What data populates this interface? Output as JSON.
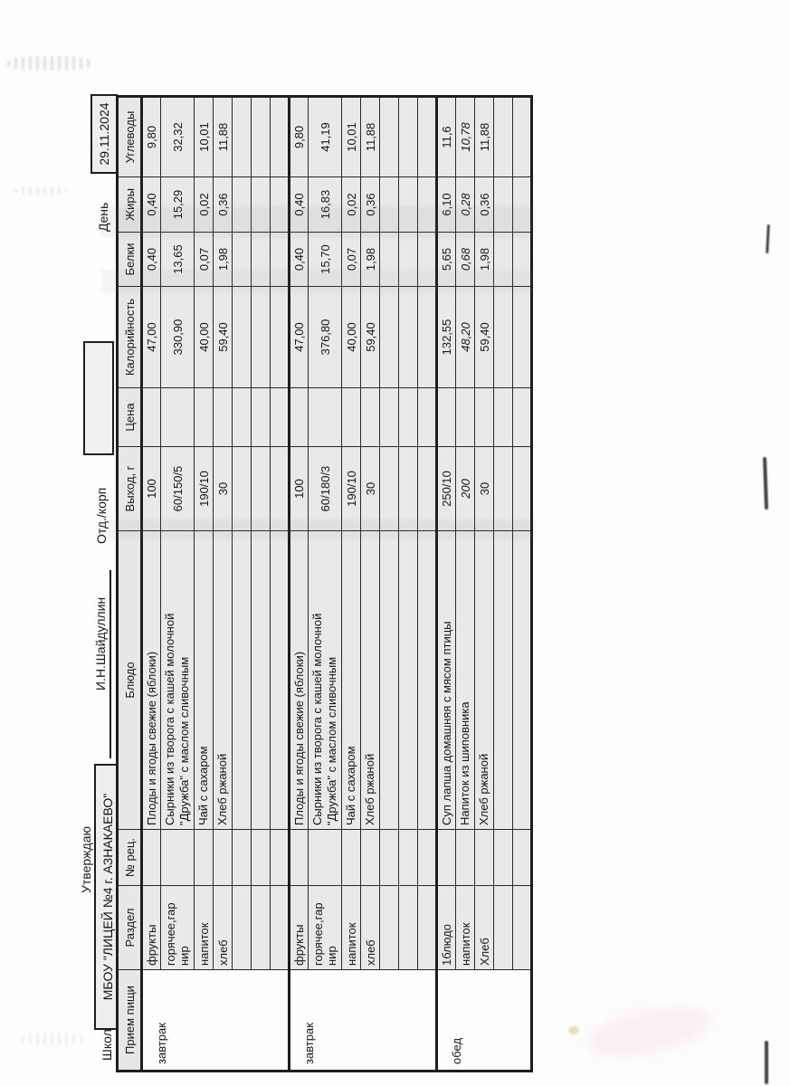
{
  "document": {
    "school_label": "Школа",
    "school_name": "МБОУ \"ЛИЦЕЙ №4 г. АЗНАКАЕВО\"",
    "approve_label": "Утверждаю",
    "approver_name": "И.Н.Шайдуллин",
    "department_label": "Отд./корп",
    "day_label": "День",
    "date_value": "29.11.2024"
  },
  "menu_table": {
    "headers": [
      "Прием пищи",
      "Раздел",
      "№ рец.",
      "Блюдо",
      "Выход, г",
      "Цена",
      "Калорийность",
      "Белки",
      "Жиры",
      "Углеводы"
    ],
    "blocks": [
      {
        "meal": "завтрак",
        "rows": [
          {
            "razdel": "фрукты",
            "recipe": "",
            "dish": "Плоды и ягоды свежие (яблоки)",
            "output": "100",
            "price": "",
            "kcal": "47,00",
            "protein": "0,40",
            "fat": "0,40",
            "carbs": "9,80"
          },
          {
            "razdel": "горячее,гар\nнир",
            "recipe": "",
            "dish": "Сырники из творога с кашей молочной\n\"Дружба\" с маслом сливочным",
            "output": "60/150/5",
            "price": "",
            "kcal": "330,90",
            "protein": "13,65",
            "fat": "15,29",
            "carbs": "32,32",
            "tall": true
          },
          {
            "razdel": "напиток",
            "recipe": "",
            "dish": "Чай с сахаром",
            "output": "190/10",
            "price": "",
            "kcal": "40,00",
            "protein": "0,07",
            "fat": "0,02",
            "carbs": "10,01"
          },
          {
            "razdel": "хлеб",
            "recipe": "",
            "dish": "Хлеб ржаной",
            "output": "30",
            "price": "",
            "kcal": "59,40",
            "protein": "1,98",
            "fat": "0,36",
            "carbs": "11,88"
          },
          {
            "empty": true
          },
          {
            "empty": true
          },
          {
            "empty": true
          }
        ]
      },
      {
        "meal": "завтрак",
        "rows": [
          {
            "razdel": "фрукты",
            "recipe": "",
            "dish": "Плоды и ягоды свежие (яблоки)",
            "output": "100",
            "price": "",
            "kcal": "47,00",
            "protein": "0,40",
            "fat": "0,40",
            "carbs": "9,80"
          },
          {
            "razdel": "горячее,гар\nнир",
            "recipe": "",
            "dish": "Сырники из творога с кашей молочной\n\"Дружба\" с маслом сливочным",
            "output": "60/180/3",
            "price": "",
            "kcal": "376,80",
            "protein": "15,70",
            "fat": "16,83",
            "carbs": "41,19",
            "tall": true
          },
          {
            "razdel": "напиток",
            "recipe": "",
            "dish": "Чай с сахаром",
            "output": "190/10",
            "price": "",
            "kcal": "40,00",
            "protein": "0,07",
            "fat": "0,02",
            "carbs": "10,01"
          },
          {
            "razdel": "хлеб",
            "recipe": "",
            "dish": "Хлеб ржаной",
            "output": "30",
            "price": "",
            "kcal": "59,40",
            "protein": "1,98",
            "fat": "0,36",
            "carbs": "11,88"
          },
          {
            "empty": true
          },
          {
            "empty": true
          },
          {
            "empty": true
          }
        ]
      },
      {
        "meal": "обед",
        "rows": [
          {
            "razdel": "1блюдо",
            "recipe": "",
            "dish": "Суп лапша домашняя с мясом птицы",
            "output": "250/10",
            "price": "",
            "kcal": "132,55",
            "protein": "5,65",
            "fat": "6,10",
            "carbs": "11,6"
          },
          {
            "razdel": "напиток",
            "recipe": "",
            "dish": "Напиток из шиповника",
            "output": "200",
            "price": "",
            "kcal": "48,20",
            "protein": "0,68",
            "fat": "0,28",
            "carbs": "10,78",
            "italic": true
          },
          {
            "razdel": "Хлеб",
            "recipe": "",
            "dish": "Хлеб ржаной",
            "output": "30",
            "price": "",
            "kcal": "59,40",
            "protein": "1,98",
            "fat": "0,36",
            "carbs": "11,88"
          },
          {
            "empty": true
          },
          {
            "empty": true
          }
        ]
      }
    ]
  },
  "colors": {
    "paper": "#fdfdfd",
    "cell_fill": "#e9e9e9",
    "grid_line": "#1e1e1e",
    "text": "#161616"
  }
}
